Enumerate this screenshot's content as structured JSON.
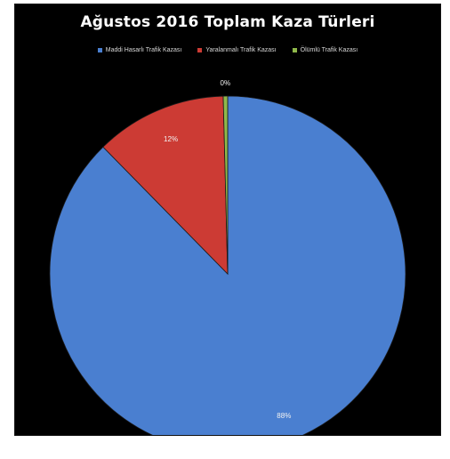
{
  "chart_data": {
    "type": "pie",
    "title": "Ağustos 2016 Toplam Kaza Türleri",
    "legend_position": "top",
    "slices": [
      {
        "name": "Maddi Hasarlı Trafik Kazası",
        "value": 88,
        "label": "88%",
        "color": "#4a7fd0"
      },
      {
        "name": "Yaralanmalı Trafik Kazası",
        "value": 12,
        "label": "12%",
        "color": "#cc3b34"
      },
      {
        "name": "Ölümlü Trafik Kazası",
        "value": 0.4,
        "label": "0%",
        "color": "#8fb84a"
      }
    ]
  }
}
